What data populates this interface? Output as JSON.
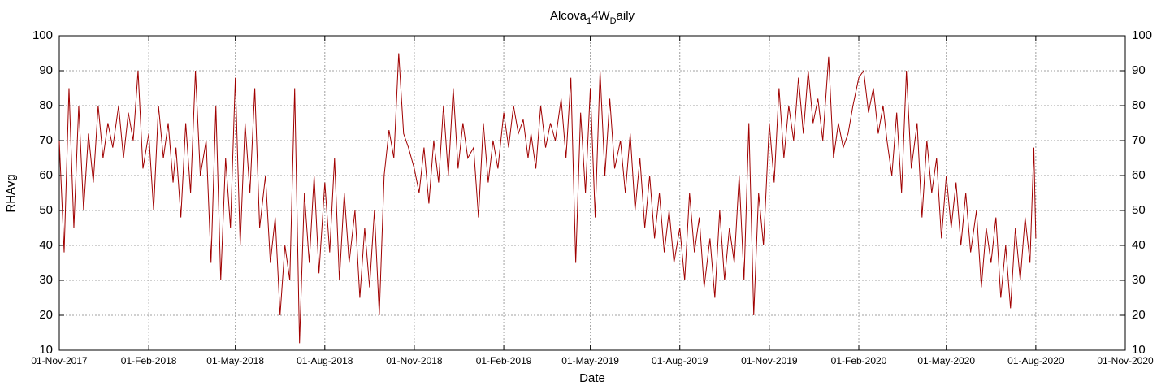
{
  "chart_data": {
    "type": "line",
    "title": [
      "Alcova",
      "1",
      "4W",
      "D",
      "aily"
    ],
    "xlabel": "Date",
    "ylabel": "RHAvg",
    "x": [
      "2017-11-01",
      "2017-11-06",
      "2017-11-11",
      "2017-11-16",
      "2017-11-21",
      "2017-11-26",
      "2017-12-01",
      "2017-12-06",
      "2017-12-11",
      "2017-12-16",
      "2017-12-21",
      "2017-12-26",
      "2018-01-01",
      "2018-01-06",
      "2018-01-11",
      "2018-01-16",
      "2018-01-21",
      "2018-01-26",
      "2018-02-01",
      "2018-02-06",
      "2018-02-11",
      "2018-02-16",
      "2018-02-21",
      "2018-02-26",
      "2018-03-01",
      "2018-03-06",
      "2018-03-11",
      "2018-03-16",
      "2018-03-21",
      "2018-03-26",
      "2018-04-01",
      "2018-04-06",
      "2018-04-11",
      "2018-04-16",
      "2018-04-21",
      "2018-04-26",
      "2018-05-01",
      "2018-05-06",
      "2018-05-11",
      "2018-05-16",
      "2018-05-21",
      "2018-05-26",
      "2018-06-01",
      "2018-06-06",
      "2018-06-11",
      "2018-06-16",
      "2018-06-21",
      "2018-06-26",
      "2018-07-01",
      "2018-07-06",
      "2018-07-11",
      "2018-07-16",
      "2018-07-21",
      "2018-07-26",
      "2018-08-01",
      "2018-08-06",
      "2018-08-11",
      "2018-08-16",
      "2018-08-21",
      "2018-08-26",
      "2018-09-01",
      "2018-09-06",
      "2018-09-11",
      "2018-09-16",
      "2018-09-21",
      "2018-09-26",
      "2018-10-01",
      "2018-10-06",
      "2018-10-11",
      "2018-10-16",
      "2018-10-21",
      "2018-10-26",
      "2018-11-01",
      "2018-11-06",
      "2018-11-11",
      "2018-11-16",
      "2018-11-21",
      "2018-11-26",
      "2018-12-01",
      "2018-12-06",
      "2018-12-11",
      "2018-12-16",
      "2018-12-21",
      "2018-12-26",
      "2019-01-01",
      "2019-01-06",
      "2019-01-11",
      "2019-01-16",
      "2019-01-21",
      "2019-01-26",
      "2019-02-01",
      "2019-02-06",
      "2019-02-11",
      "2019-02-16",
      "2019-02-21",
      "2019-02-26",
      "2019-03-01",
      "2019-03-06",
      "2019-03-11",
      "2019-03-16",
      "2019-03-21",
      "2019-03-26",
      "2019-04-01",
      "2019-04-06",
      "2019-04-11",
      "2019-04-16",
      "2019-04-21",
      "2019-04-26",
      "2019-05-01",
      "2019-05-06",
      "2019-05-11",
      "2019-05-16",
      "2019-05-21",
      "2019-05-26",
      "2019-06-01",
      "2019-06-06",
      "2019-06-11",
      "2019-06-16",
      "2019-06-21",
      "2019-06-26",
      "2019-07-01",
      "2019-07-06",
      "2019-07-11",
      "2019-07-16",
      "2019-07-21",
      "2019-07-26",
      "2019-08-01",
      "2019-08-06",
      "2019-08-11",
      "2019-08-16",
      "2019-08-21",
      "2019-08-26",
      "2019-09-01",
      "2019-09-06",
      "2019-09-11",
      "2019-09-16",
      "2019-09-21",
      "2019-09-26",
      "2019-10-01",
      "2019-10-06",
      "2019-10-11",
      "2019-10-16",
      "2019-10-21",
      "2019-10-26",
      "2019-11-01",
      "2019-11-06",
      "2019-11-11",
      "2019-11-16",
      "2019-11-21",
      "2019-11-26",
      "2019-12-01",
      "2019-12-06",
      "2019-12-11",
      "2019-12-16",
      "2019-12-21",
      "2019-12-26",
      "2020-01-01",
      "2020-01-06",
      "2020-01-11",
      "2020-01-16",
      "2020-01-21",
      "2020-01-26",
      "2020-02-01",
      "2020-02-06",
      "2020-02-11",
      "2020-02-16",
      "2020-02-21",
      "2020-02-26",
      "2020-03-01",
      "2020-03-06",
      "2020-03-11",
      "2020-03-16",
      "2020-03-21",
      "2020-03-26",
      "2020-04-01",
      "2020-04-06",
      "2020-04-11",
      "2020-04-16",
      "2020-04-21",
      "2020-04-26",
      "2020-05-01",
      "2020-05-06",
      "2020-05-11",
      "2020-05-16",
      "2020-05-21",
      "2020-05-26",
      "2020-06-01",
      "2020-06-06",
      "2020-06-11",
      "2020-06-16",
      "2020-06-21",
      "2020-06-26",
      "2020-07-01",
      "2020-07-06",
      "2020-07-11",
      "2020-07-16",
      "2020-07-21",
      "2020-07-26",
      "2020-07-30",
      "2020-08-01"
    ],
    "series": [
      {
        "name": "RHAvg",
        "color": "#a00000",
        "values": [
          70,
          38,
          85,
          45,
          80,
          50,
          72,
          58,
          80,
          65,
          75,
          68,
          80,
          65,
          78,
          70,
          90,
          62,
          72,
          50,
          80,
          65,
          75,
          58,
          68,
          48,
          75,
          55,
          90,
          60,
          70,
          35,
          80,
          30,
          65,
          45,
          88,
          40,
          75,
          55,
          85,
          45,
          60,
          35,
          48,
          20,
          40,
          30,
          85,
          12,
          55,
          35,
          60,
          32,
          58,
          38,
          65,
          30,
          55,
          35,
          50,
          25,
          45,
          28,
          50,
          20,
          60,
          73,
          65,
          95,
          72,
          68,
          62,
          55,
          68,
          52,
          70,
          58,
          80,
          60,
          85,
          62,
          75,
          65,
          68,
          48,
          75,
          58,
          70,
          62,
          78,
          68,
          80,
          72,
          76,
          65,
          72,
          62,
          80,
          68,
          75,
          70,
          82,
          65,
          88,
          35,
          78,
          55,
          85,
          48,
          90,
          60,
          82,
          62,
          70,
          55,
          72,
          50,
          65,
          45,
          60,
          42,
          55,
          38,
          50,
          35,
          45,
          30,
          55,
          38,
          48,
          28,
          42,
          25,
          50,
          30,
          45,
          35,
          60,
          30,
          75,
          20,
          55,
          40,
          75,
          58,
          85,
          65,
          80,
          70,
          88,
          72,
          90,
          75,
          82,
          70,
          94,
          65,
          75,
          68,
          72,
          80,
          88,
          90,
          78,
          85,
          72,
          80,
          70,
          60,
          78,
          55,
          90,
          62,
          75,
          48,
          70,
          55,
          65,
          42,
          60,
          45,
          58,
          40,
          55,
          38,
          50,
          28,
          45,
          35,
          48,
          25,
          40,
          22,
          45,
          30,
          48,
          35,
          68,
          42
        ]
      }
    ],
    "xlim": [
      "2017-11-01",
      "2020-11-01"
    ],
    "xticks": [
      {
        "value": "2017-11-01",
        "label": "01-Nov-2017"
      },
      {
        "value": "2018-02-01",
        "label": "01-Feb-2018"
      },
      {
        "value": "2018-05-01",
        "label": "01-May-2018"
      },
      {
        "value": "2018-08-01",
        "label": "01-Aug-2018"
      },
      {
        "value": "2018-11-01",
        "label": "01-Nov-2018"
      },
      {
        "value": "2019-02-01",
        "label": "01-Feb-2019"
      },
      {
        "value": "2019-05-01",
        "label": "01-May-2019"
      },
      {
        "value": "2019-08-01",
        "label": "01-Aug-2019"
      },
      {
        "value": "2019-11-01",
        "label": "01-Nov-2019"
      },
      {
        "value": "2020-02-01",
        "label": "01-Feb-2020"
      },
      {
        "value": "2020-05-01",
        "label": "01-May-2020"
      },
      {
        "value": "2020-08-01",
        "label": "01-Aug-2020"
      },
      {
        "value": "2020-11-01",
        "label": "01-Nov-2020"
      }
    ],
    "ylim": [
      10,
      100
    ],
    "yticks": [
      10,
      20,
      30,
      40,
      50,
      60,
      70,
      80,
      90,
      100
    ],
    "y2lim": [
      10,
      100
    ],
    "y2ticks": [
      10,
      20,
      30,
      40,
      50,
      60,
      70,
      80,
      90,
      100
    ],
    "grid": true
  }
}
